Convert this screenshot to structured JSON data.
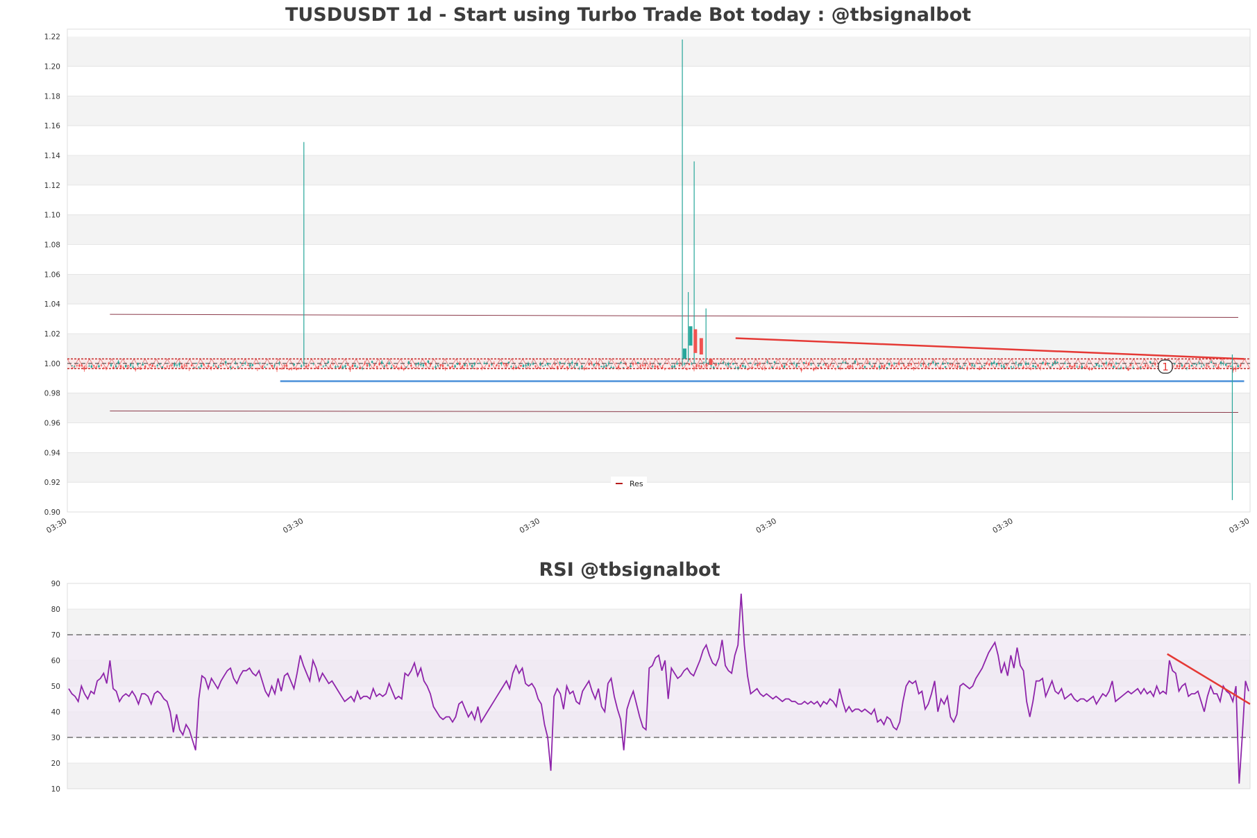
{
  "colors": {
    "up": "#26a69a",
    "down": "#ef5350",
    "band": "#f3f3f3",
    "grid": "#e0e0e0",
    "support": "#4a90d9",
    "trend": "#e53935",
    "channel": "#8b3a4a",
    "rsi_line": "#8e24aa",
    "rsi_fill": "#efe7f3"
  },
  "chart_data": [
    {
      "type": "candlestick",
      "title": "TUSDUSDT 1d - Start using Turbo Trade Bot today : @tbsignalbot",
      "ylim": [
        0.9,
        1.225
      ],
      "yticks": [
        "0.90",
        "0.92",
        "0.94",
        "0.96",
        "0.98",
        "1.00",
        "1.02",
        "1.04",
        "1.06",
        "1.08",
        "1.10",
        "1.12",
        "1.14",
        "1.16",
        "1.18",
        "1.20",
        "1.22"
      ],
      "xticks": [
        "03:30",
        "03:30",
        "03:30",
        "03:30",
        "03:30",
        "03:30"
      ],
      "legend": [
        "Res"
      ],
      "grid": true,
      "legend_position": "lower-center",
      "marker_label": "1",
      "levels": {
        "support": 0.988,
        "upper_channel": [
          1.033,
          1.031
        ],
        "lower_channel": [
          0.968,
          0.967
        ],
        "resistance_trend": [
          1.017,
          1.003
        ],
        "res_zone": [
          0.9965,
          1.003
        ]
      },
      "wicks": [
        {
          "x": 0.2,
          "high": 1.149,
          "low": 0.998
        },
        {
          "x": 0.52,
          "high": 1.218,
          "low": 0.998
        },
        {
          "x": 0.53,
          "high": 1.136,
          "low": 1.0
        },
        {
          "x": 0.525,
          "high": 1.048,
          "low": 1.001
        },
        {
          "x": 0.54,
          "high": 1.037,
          "low": 1.0
        },
        {
          "x": 0.985,
          "high": 1.006,
          "low": 0.908
        }
      ]
    },
    {
      "type": "line",
      "title": "RSI @tbsignalbot",
      "ylim": [
        10,
        90
      ],
      "yticks": [
        "10",
        "20",
        "30",
        "40",
        "50",
        "60",
        "70",
        "80",
        "90"
      ],
      "overbought": 70,
      "oversold": 30,
      "grid": true,
      "series": [
        {
          "values": [
            49,
            47,
            46,
            44,
            50,
            47,
            45,
            48,
            47,
            52,
            53,
            55,
            51,
            60,
            49,
            48,
            44,
            46,
            47,
            46,
            48,
            46,
            43,
            47,
            47,
            46,
            43,
            47,
            48,
            47,
            45,
            44,
            40,
            32,
            39,
            33,
            31,
            35,
            33,
            29,
            25,
            45,
            54,
            53,
            49,
            53,
            51,
            49,
            52,
            54,
            56,
            57,
            53,
            51,
            54,
            56,
            56,
            57,
            55,
            54,
            56,
            52,
            48,
            46,
            50,
            47,
            53,
            48,
            54,
            55,
            52,
            49,
            55,
            62,
            58,
            55,
            52,
            60,
            57,
            52,
            55,
            53,
            51,
            52,
            50,
            48,
            46,
            44,
            45,
            46,
            44,
            48,
            45,
            46,
            46,
            45,
            49,
            46,
            47,
            46,
            47,
            51,
            48,
            45,
            46,
            45,
            55,
            54,
            56,
            59,
            54,
            57,
            52,
            50,
            47,
            42,
            40,
            38,
            37,
            38,
            38,
            36,
            38,
            43,
            44,
            41,
            38,
            40,
            37,
            42,
            36,
            38,
            40,
            42,
            44,
            46,
            48,
            50,
            52,
            49,
            55,
            58,
            55,
            57,
            51,
            50,
            51,
            49,
            45,
            43,
            35,
            30,
            17,
            46,
            49,
            47,
            41,
            50,
            47,
            48,
            44,
            43,
            48,
            50,
            52,
            48,
            45,
            49,
            42,
            40,
            51,
            53,
            46,
            41,
            37,
            25,
            41,
            45,
            48,
            43,
            38,
            34,
            33,
            57,
            58,
            61,
            62,
            56,
            60,
            45,
            57,
            55,
            53,
            54,
            56,
            57,
            55,
            54,
            57,
            60,
            64,
            66,
            62,
            59,
            58,
            61,
            68,
            58,
            56,
            55,
            62,
            66,
            86,
            66,
            54,
            47,
            48,
            49,
            47,
            46,
            47,
            46,
            45,
            46,
            45,
            44,
            45,
            45,
            44,
            44,
            43,
            43,
            44,
            43,
            44,
            43,
            44,
            42,
            44,
            43,
            45,
            44,
            42,
            49,
            44,
            40,
            42,
            40,
            41,
            41,
            40,
            41,
            40,
            39,
            41,
            36,
            37,
            35,
            38,
            37,
            34,
            33,
            36,
            44,
            50,
            52,
            51,
            52,
            47,
            48,
            41,
            43,
            47,
            52,
            40,
            45,
            43,
            46,
            38,
            36,
            39,
            50,
            51,
            50,
            49,
            50,
            53,
            55,
            57,
            60,
            63,
            65,
            67,
            62,
            55,
            59,
            54,
            62,
            57,
            65,
            58,
            56,
            44,
            38,
            44,
            52,
            52,
            53,
            46,
            49,
            52,
            48,
            47,
            49,
            45,
            46,
            47,
            45,
            44,
            45,
            45,
            44,
            45,
            46,
            43,
            45,
            47,
            46,
            48,
            52,
            44,
            45,
            46,
            47,
            48,
            47,
            48,
            49,
            47,
            49,
            47,
            48,
            46,
            50,
            47,
            48,
            47,
            60,
            56,
            55,
            48,
            50,
            51,
            46,
            47,
            47,
            48,
            44,
            40,
            46,
            50,
            47,
            47,
            44,
            50,
            48,
            47,
            44,
            50,
            12,
            31,
            52,
            48
          ]
        }
      ],
      "trend": {
        "from": 62.5,
        "to": 43.0
      }
    }
  ]
}
